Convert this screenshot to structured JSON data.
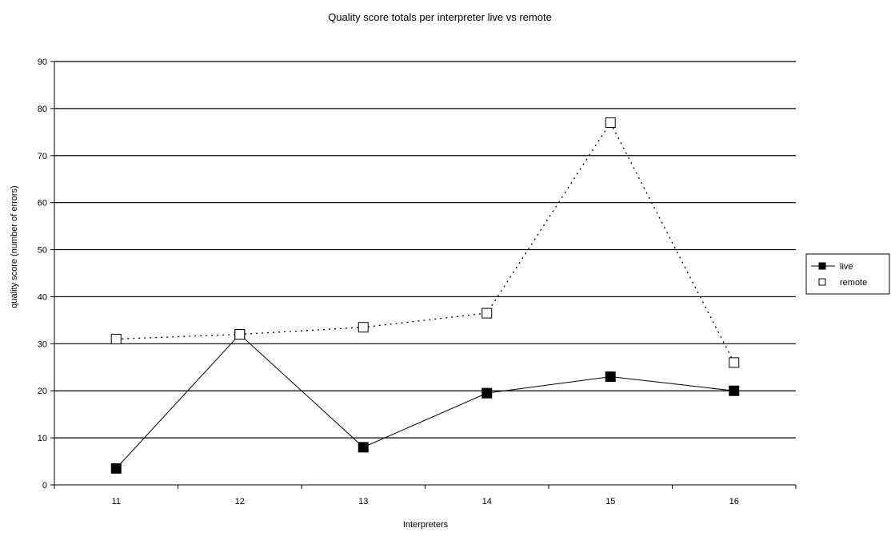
{
  "chart_data": {
    "type": "line",
    "title": "Quality score totals per interpreter live vs remote",
    "xlabel": "Interpreters",
    "ylabel": "quality score (number of errors)",
    "categories": [
      "11",
      "12",
      "13",
      "14",
      "15",
      "16"
    ],
    "ylim": [
      0,
      90
    ],
    "yticks": [
      0,
      10,
      20,
      30,
      40,
      50,
      60,
      70,
      80,
      90
    ],
    "grid": true,
    "legend_position": "right",
    "series": [
      {
        "name": "live",
        "values": [
          3.5,
          32,
          8,
          19.5,
          23,
          20
        ],
        "color": "#000000",
        "line_style": "solid",
        "marker": "filled-square"
      },
      {
        "name": "remote",
        "values": [
          31,
          32,
          33.5,
          36.5,
          77,
          26
        ],
        "color": "#000000",
        "line_style": "dotted",
        "marker": "hollow-square"
      }
    ]
  }
}
